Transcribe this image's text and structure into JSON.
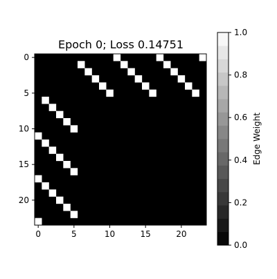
{
  "chart_data": {
    "type": "heatmap",
    "title": "Epoch 0; Loss 0.14751",
    "xlabel": "",
    "ylabel": "",
    "x_range": [
      0,
      23
    ],
    "y_range": [
      0,
      23
    ],
    "x_ticks": [
      "0",
      "5",
      "10",
      "15",
      "20"
    ],
    "y_ticks": [
      "0",
      "5",
      "10",
      "15",
      "20"
    ],
    "value_range": [
      0.0,
      1.0
    ],
    "background_value": 0.0,
    "highlight_value": 1.0,
    "highlight_cells": [
      {
        "row": 0,
        "col": 11
      },
      {
        "row": 0,
        "col": 17
      },
      {
        "row": 0,
        "col": 23
      },
      {
        "row": 1,
        "col": 6
      },
      {
        "row": 1,
        "col": 12
      },
      {
        "row": 1,
        "col": 18
      },
      {
        "row": 2,
        "col": 7
      },
      {
        "row": 2,
        "col": 13
      },
      {
        "row": 2,
        "col": 19
      },
      {
        "row": 3,
        "col": 8
      },
      {
        "row": 3,
        "col": 14
      },
      {
        "row": 3,
        "col": 20
      },
      {
        "row": 4,
        "col": 9
      },
      {
        "row": 4,
        "col": 15
      },
      {
        "row": 4,
        "col": 21
      },
      {
        "row": 5,
        "col": 10
      },
      {
        "row": 5,
        "col": 16
      },
      {
        "row": 5,
        "col": 22
      },
      {
        "row": 6,
        "col": 1
      },
      {
        "row": 7,
        "col": 2
      },
      {
        "row": 8,
        "col": 3
      },
      {
        "row": 9,
        "col": 4
      },
      {
        "row": 10,
        "col": 5
      },
      {
        "row": 11,
        "col": 0
      },
      {
        "row": 12,
        "col": 1
      },
      {
        "row": 13,
        "col": 2
      },
      {
        "row": 14,
        "col": 3
      },
      {
        "row": 15,
        "col": 4
      },
      {
        "row": 16,
        "col": 5
      },
      {
        "row": 17,
        "col": 0
      },
      {
        "row": 18,
        "col": 1
      },
      {
        "row": 19,
        "col": 2
      },
      {
        "row": 20,
        "col": 3
      },
      {
        "row": 21,
        "col": 4
      },
      {
        "row": 22,
        "col": 5
      },
      {
        "row": 23,
        "col": 0
      }
    ],
    "colorbar": {
      "label": "Edge Weight",
      "ticks": [
        "0.0",
        "0.2",
        "0.4",
        "0.6",
        "0.8",
        "1.0"
      ],
      "levels": 16,
      "colormap": "grayscale"
    },
    "colors": {
      "low": "#000000",
      "high": "#ffffff"
    }
  }
}
